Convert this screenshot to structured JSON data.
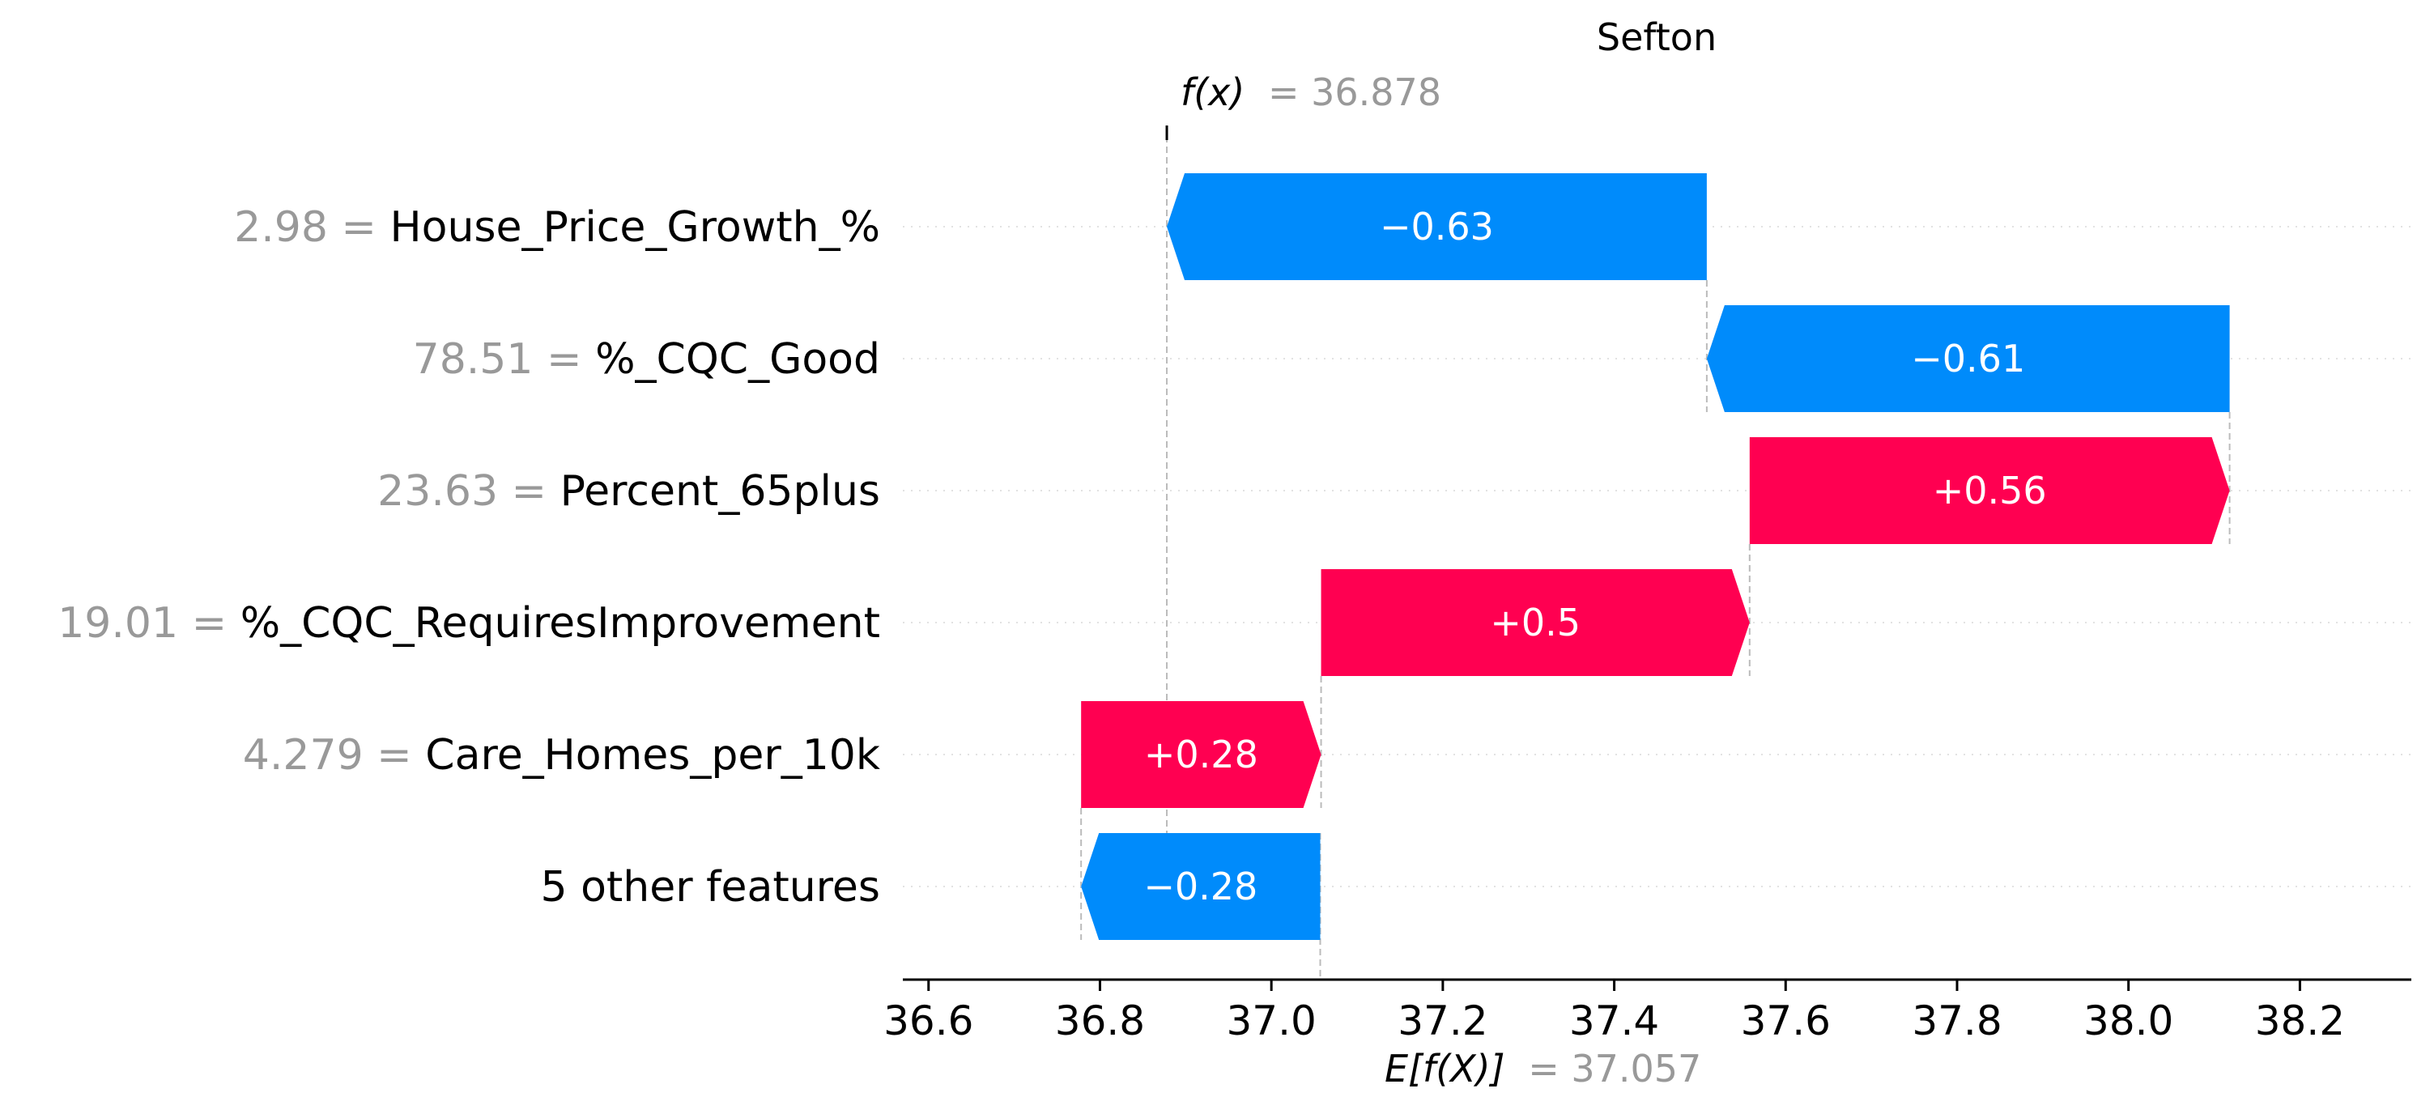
{
  "chart_data": {
    "type": "bar",
    "subtype": "waterfall",
    "title": "Sefton",
    "fx_label": "f(x)",
    "fx_value_text": "= 36.878",
    "fx": 36.878,
    "ex_label": "E[f(X)]",
    "ex_value_text": "= 37.057",
    "ex": 37.057,
    "xlim": [
      36.57,
      38.33
    ],
    "xticks": [
      36.6,
      36.8,
      37.0,
      37.2,
      37.4,
      37.6,
      37.8,
      38.0,
      38.2
    ],
    "xtick_labels": [
      "36.6",
      "36.8",
      "37.0",
      "37.2",
      "37.4",
      "37.6",
      "37.8",
      "38.0",
      "38.2"
    ],
    "features": [
      {
        "value": "2.98",
        "name": "House_Price_Growth_%",
        "start": 37.508,
        "end": 36.878,
        "contribution": -0.63,
        "label": "−0.63"
      },
      {
        "value": "78.51",
        "name": "%_CQC_Good",
        "start": 38.118,
        "end": 37.508,
        "contribution": -0.61,
        "label": "−0.61"
      },
      {
        "value": "23.63",
        "name": "Percent_65plus",
        "start": 37.558,
        "end": 38.118,
        "contribution": 0.56,
        "label": "+0.56"
      },
      {
        "value": "19.01",
        "name": "%_CQC_RequiresImprovement",
        "start": 37.058,
        "end": 37.558,
        "contribution": 0.5,
        "label": "+0.5"
      },
      {
        "value": "4.279",
        "name": "Care_Homes_per_10k",
        "start": 36.778,
        "end": 37.058,
        "contribution": 0.28,
        "label": "+0.28"
      },
      {
        "value": "",
        "name": "5 other features",
        "start": 37.057,
        "end": 36.778,
        "contribution": -0.28,
        "label": "−0.28"
      }
    ],
    "grid": false,
    "colors": {
      "positive": "#ff0051",
      "negative": "#008bfb",
      "value_text": "#999999",
      "name_text": "#000000",
      "guide": "#bbbbbb",
      "row_grid": "#e2e2e2"
    }
  }
}
